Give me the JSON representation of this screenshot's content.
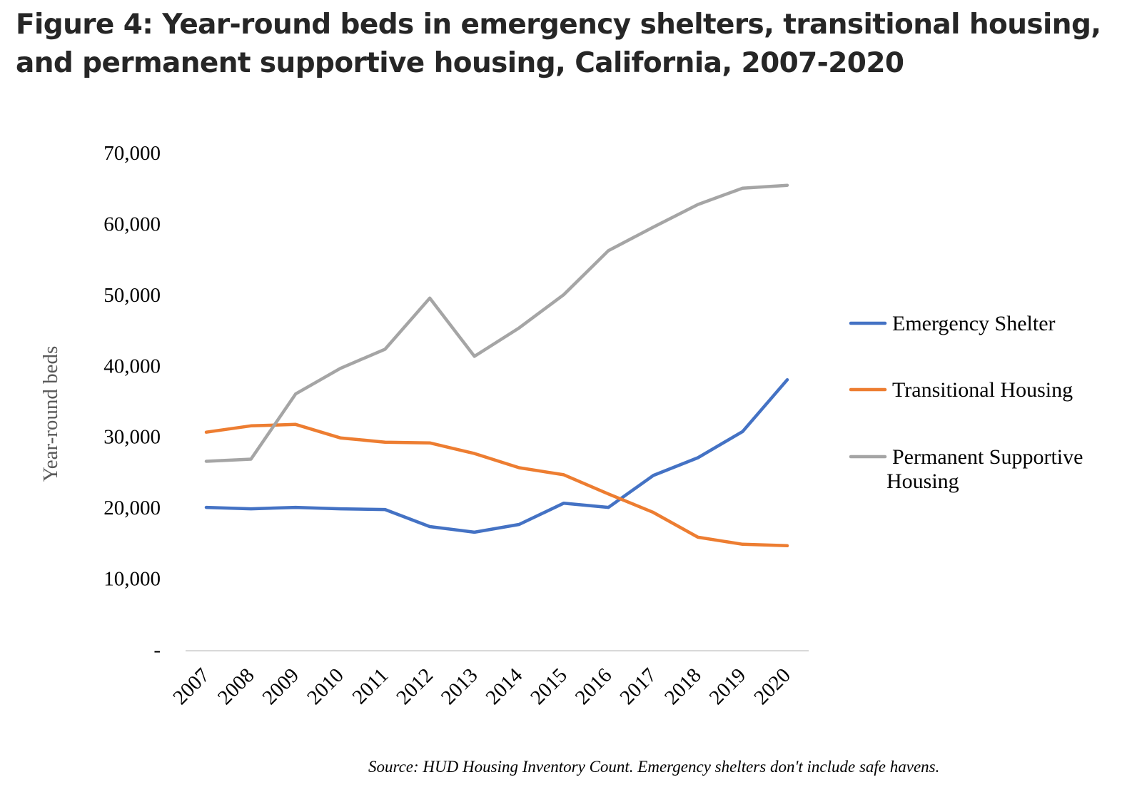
{
  "title": "Figure 4: Year-round beds in emergency shelters, transitional housing, and permanent supportive housing, California, 2007-2020",
  "source_note": "Source: HUD Housing Inventory Count. Emergency shelters don't include safe havens.",
  "chart_data": {
    "type": "line",
    "title": "Figure 4: Year-round beds in emergency shelters, transitional housing, and permanent supportive housing, California, 2007-2020",
    "xlabel": "",
    "ylabel": "Year-round beds",
    "ylim": [
      0,
      70000
    ],
    "yticks": [
      0,
      10000,
      20000,
      30000,
      40000,
      50000,
      60000,
      70000
    ],
    "ytick_labels": [
      "-",
      "10,000",
      "20,000",
      "30,000",
      "40,000",
      "50,000",
      "60,000",
      "70,000"
    ],
    "x": [
      "2007",
      "2008",
      "2009",
      "2010",
      "2011",
      "2012",
      "2013",
      "2014",
      "2015",
      "2016",
      "2017",
      "2018",
      "2019",
      "2020"
    ],
    "grid": false,
    "legend_position": "right",
    "series": [
      {
        "name": "Emergency Shelter",
        "color": "#4472c4",
        "values": [
          20000,
          19800,
          20000,
          19800,
          19700,
          17300,
          16500,
          17600,
          20600,
          20000,
          24500,
          27000,
          30700,
          38000
        ]
      },
      {
        "name": "Transitional Housing",
        "color": "#ed7d31",
        "values": [
          30600,
          31500,
          31700,
          29800,
          29200,
          29100,
          27600,
          25600,
          24600,
          21900,
          19300,
          15800,
          14800,
          14600
        ]
      },
      {
        "name": "Permanent Supportive Housing",
        "legend_lines": [
          "Permanent Supportive",
          "Housing"
        ],
        "color": "#a5a5a5",
        "values": [
          26500,
          26800,
          36000,
          39600,
          42300,
          49500,
          41300,
          45300,
          50000,
          56200,
          59500,
          62700,
          65000,
          65400
        ]
      }
    ]
  }
}
